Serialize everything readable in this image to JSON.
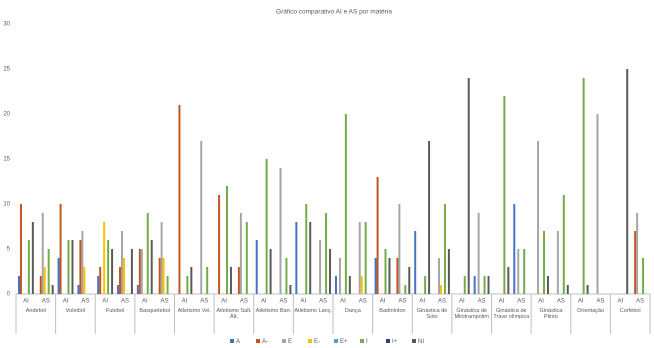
{
  "chart_data": {
    "type": "bar",
    "title": "Gráfico comparativo AI e AS por matéria",
    "groups": [
      "Andebol",
      "Voleibol",
      "Futebol",
      "Basquetebol",
      "Atletismo Vel.",
      "Atletismo Salt. Alt.",
      "Atletismo Barr.",
      "Atletismo Lanç.",
      "Dança",
      "Badminton",
      "Ginástica de Solo",
      "Ginástica de Minitrampolim",
      "Ginástica de Trave olímpica",
      "Ginástica Plinto",
      "Orientação",
      "Corfebol"
    ],
    "subcategories": [
      "AI",
      "AS"
    ],
    "series": [
      {
        "name": "A",
        "color": "#4472c4",
        "values": [
          2,
          0,
          4,
          1,
          2,
          1,
          1,
          0,
          0,
          0,
          0,
          0,
          6,
          0,
          8,
          0,
          2,
          0,
          4,
          0,
          7,
          0,
          0,
          2,
          0,
          10,
          0,
          0,
          0,
          0,
          0,
          0
        ]
      },
      {
        "name": "A-",
        "color": "#c0561f",
        "values": [
          10,
          2,
          10,
          6,
          3,
          3,
          5,
          4,
          21,
          0,
          11,
          3,
          0,
          0,
          0,
          0,
          0,
          0,
          13,
          4,
          0,
          0,
          0,
          0,
          0,
          0,
          0,
          0,
          0,
          0,
          0,
          7
        ]
      },
      {
        "name": "E",
        "color": "#a5a5a5",
        "values": [
          0,
          9,
          0,
          7,
          0,
          7,
          5,
          8,
          0,
          17,
          0,
          9,
          0,
          14,
          0,
          6,
          4,
          8,
          0,
          10,
          0,
          4,
          0,
          9,
          0,
          5,
          17,
          7,
          0,
          20,
          0,
          9
        ]
      },
      {
        "name": "E-",
        "color": "#ffc000",
        "values": [
          0,
          3,
          0,
          3,
          8,
          4,
          0,
          4,
          0,
          0,
          0,
          0,
          0,
          0,
          0,
          0,
          0,
          2,
          0,
          0,
          0,
          1,
          0,
          0,
          0,
          0,
          0,
          0,
          0,
          0,
          0,
          0
        ]
      },
      {
        "name": "E+",
        "color": "#5b9bd5",
        "values": [
          0,
          0,
          0,
          0,
          0,
          0,
          0,
          0,
          0,
          0,
          0,
          0,
          0,
          0,
          0,
          0,
          0,
          0,
          0,
          0,
          0,
          0,
          0,
          0,
          0,
          0,
          0,
          0,
          0,
          0,
          0,
          0
        ]
      },
      {
        "name": "I",
        "color": "#70ad47",
        "values": [
          6,
          5,
          6,
          0,
          6,
          0,
          9,
          2,
          2,
          3,
          12,
          8,
          15,
          4,
          10,
          9,
          20,
          8,
          5,
          1,
          2,
          10,
          2,
          2,
          22,
          5,
          7,
          11,
          24,
          0,
          0,
          4
        ]
      },
      {
        "name": "I+",
        "color": "#264478",
        "values": [
          0,
          0,
          0,
          0,
          0,
          0,
          0,
          0,
          0,
          0,
          0,
          0,
          0,
          0,
          0,
          0,
          0,
          0,
          0,
          0,
          0,
          0,
          0,
          0,
          0,
          0,
          0,
          0,
          0,
          0,
          0,
          0
        ]
      },
      {
        "name": "NI",
        "color": "#595959",
        "values": [
          8,
          1,
          6,
          0,
          5,
          5,
          6,
          0,
          3,
          0,
          3,
          0,
          5,
          1,
          8,
          5,
          2,
          0,
          4,
          3,
          17,
          5,
          24,
          2,
          3,
          0,
          2,
          1,
          1,
          0,
          25,
          0
        ]
      }
    ],
    "ylim": [
      0,
      30
    ],
    "yticks": [
      0,
      5,
      10,
      15,
      20,
      25,
      30
    ],
    "grid": false,
    "legend": "bottom"
  }
}
